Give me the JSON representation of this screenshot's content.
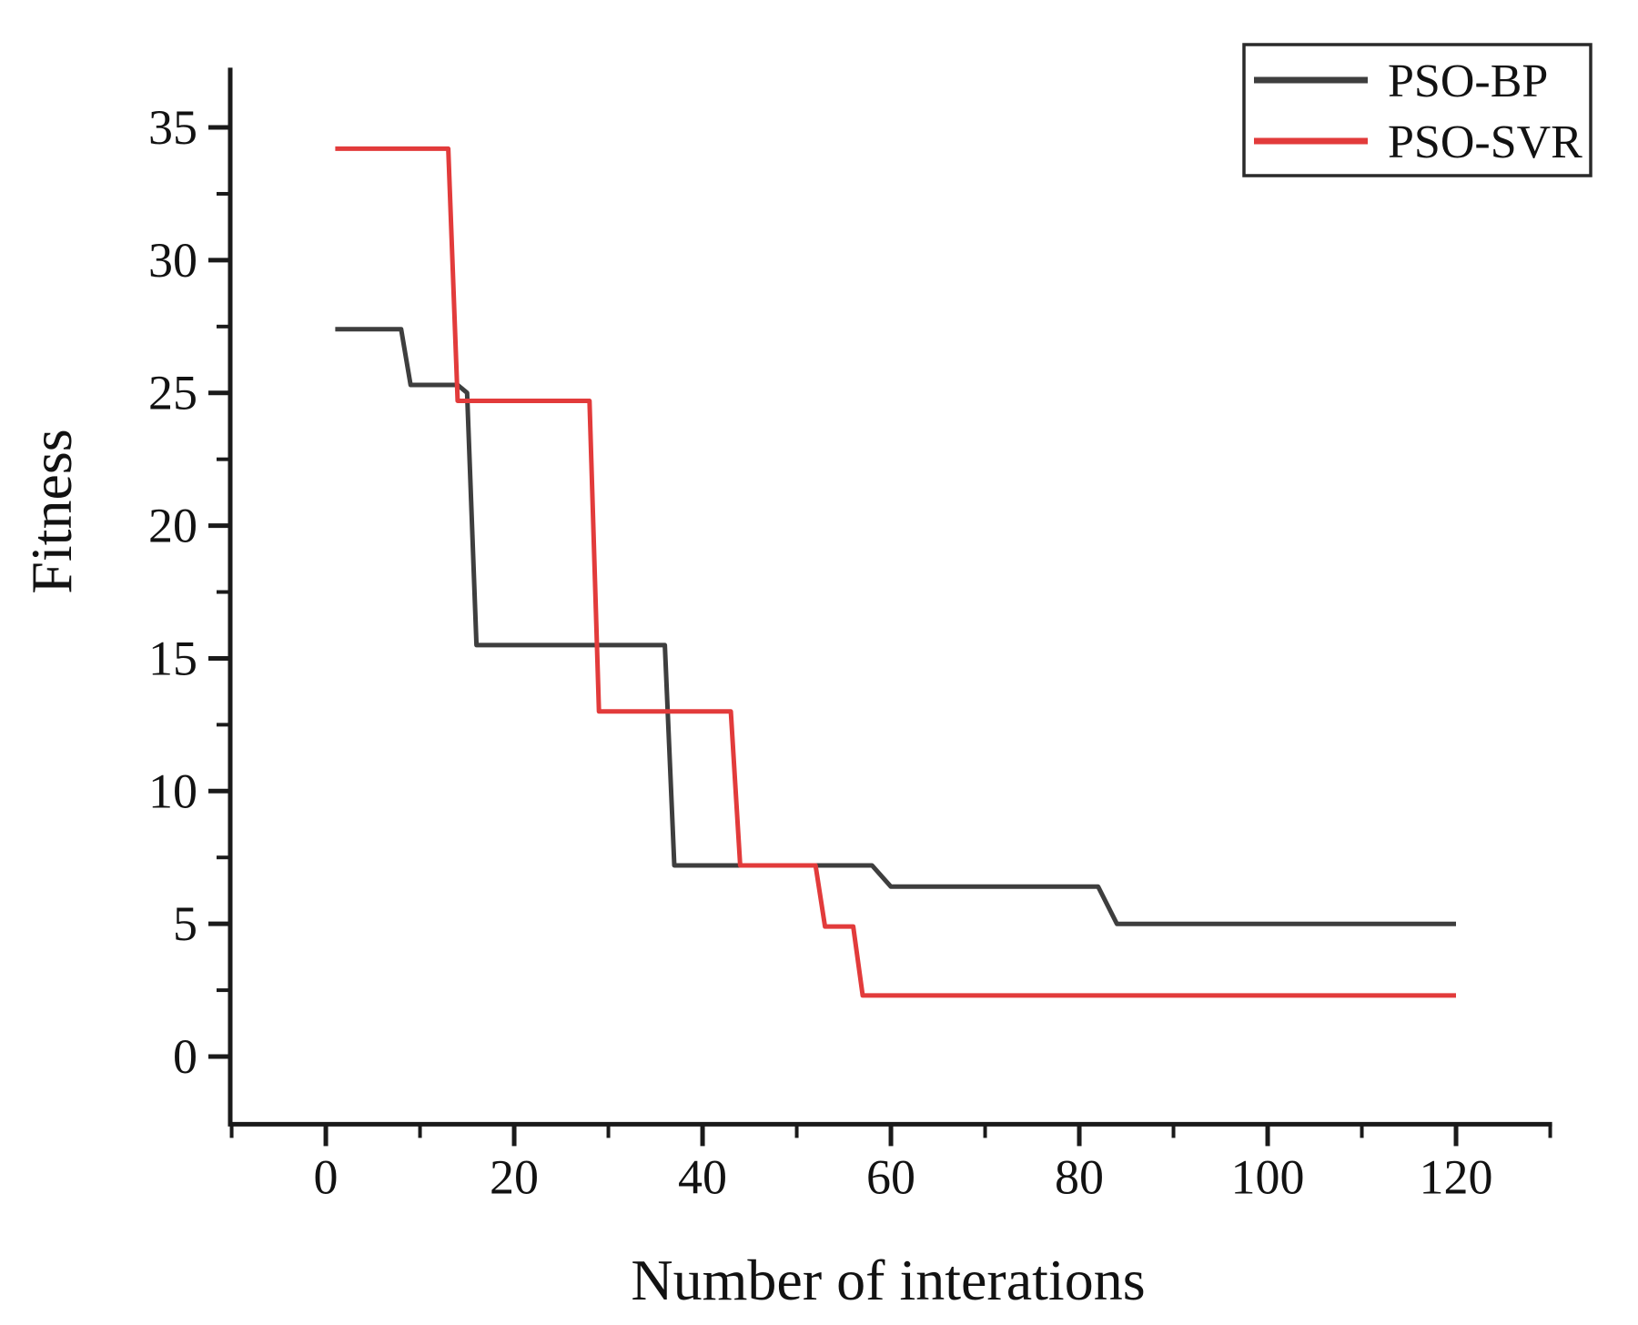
{
  "chart_data": {
    "type": "line",
    "title": "",
    "xlabel": "Number of interations",
    "ylabel": "Fitness",
    "xlim": [
      -10.15,
      130.2
    ],
    "ylim": [
      -2.55,
      37.25
    ],
    "grid": false,
    "x_ticks_major": [
      0,
      20,
      40,
      60,
      80,
      100,
      120
    ],
    "x_ticks_minor": [
      -10,
      10,
      30,
      50,
      70,
      90,
      110,
      130
    ],
    "y_ticks_major": [
      0,
      5,
      10,
      15,
      20,
      25,
      30,
      35
    ],
    "y_ticks_minor": [
      2.5,
      7.5,
      12.5,
      17.5,
      22.5,
      27.5,
      32.5
    ],
    "axis_color": "#1a1a1a",
    "text_color": "#121212",
    "legend": {
      "position": "top-right",
      "border_color": "#2a2a2a",
      "entries": [
        "PSO-BP",
        "PSO-SVR"
      ]
    },
    "series": [
      {
        "name": "PSO-BP",
        "color": "#3e3e3e",
        "points": [
          [
            1,
            27.4
          ],
          [
            8,
            27.4
          ],
          [
            9,
            25.3
          ],
          [
            14,
            25.3
          ],
          [
            15,
            25.0
          ],
          [
            16,
            15.5
          ],
          [
            36,
            15.5
          ],
          [
            37,
            7.2
          ],
          [
            58,
            7.2
          ],
          [
            60,
            6.4
          ],
          [
            82,
            6.4
          ],
          [
            84,
            5.0
          ],
          [
            120,
            5.0
          ]
        ]
      },
      {
        "name": "PSO-SVR",
        "color": "#e23b3b",
        "points": [
          [
            1,
            34.2
          ],
          [
            13,
            34.2
          ],
          [
            14,
            24.7
          ],
          [
            28,
            24.7
          ],
          [
            29,
            13.0
          ],
          [
            43,
            13.0
          ],
          [
            44,
            7.2
          ],
          [
            52,
            7.2
          ],
          [
            53,
            4.9
          ],
          [
            56,
            4.9
          ],
          [
            57,
            2.3
          ],
          [
            120,
            2.3
          ]
        ]
      }
    ]
  }
}
